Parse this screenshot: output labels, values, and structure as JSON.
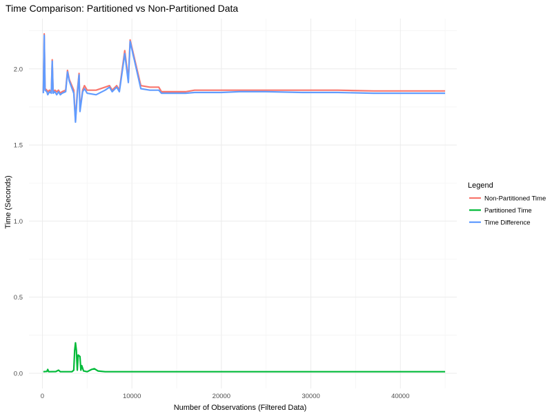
{
  "chart_data": {
    "type": "line",
    "title": "Time Comparison: Partitioned vs Non-Partitioned Data",
    "xlabel": "Number of Observations (Filtered Data)",
    "ylabel": "Time (Seconds)",
    "xlim": [
      -1500,
      46300
    ],
    "ylim": [
      -0.1,
      2.33
    ],
    "x_ticks": [
      0,
      10000,
      20000,
      30000,
      40000
    ],
    "x_tick_labels": [
      "0",
      "10000",
      "20000",
      "30000",
      "40000"
    ],
    "y_ticks": [
      0.0,
      0.5,
      1.0,
      1.5,
      2.0
    ],
    "y_tick_labels": [
      "0.0",
      "0.5",
      "1.0",
      "1.5",
      "2.0"
    ],
    "grid": true,
    "legend": {
      "title": "Legend",
      "position": "right"
    },
    "series": [
      {
        "name": "Non-Partitioned Time",
        "color": "#F8766D",
        "x": [
          100,
          200,
          300,
          500,
          600,
          800,
          1000,
          1100,
          1200,
          1400,
          1600,
          1800,
          2000,
          2200,
          2600,
          2800,
          3000,
          3500,
          3700,
          3900,
          4100,
          4200,
          4500,
          4700,
          5000,
          6000,
          7000,
          7500,
          7800,
          8300,
          8600,
          9200,
          9600,
          9800,
          11000,
          12000,
          13000,
          13300,
          15000,
          16000,
          17000,
          18000,
          20000,
          22000,
          25000,
          29000,
          33000,
          37000,
          40000,
          45000
        ],
        "values": [
          1.85,
          2.23,
          1.87,
          1.86,
          1.85,
          1.86,
          1.85,
          2.06,
          1.85,
          1.86,
          1.85,
          1.86,
          1.84,
          1.85,
          1.86,
          1.99,
          1.93,
          1.86,
          1.66,
          1.85,
          1.97,
          1.73,
          1.86,
          1.89,
          1.86,
          1.86,
          1.88,
          1.89,
          1.86,
          1.89,
          1.86,
          2.12,
          1.93,
          2.19,
          1.89,
          1.88,
          1.88,
          1.85,
          1.85,
          1.85,
          1.86,
          1.86,
          1.86,
          1.86,
          1.86,
          1.86,
          1.86,
          1.855,
          1.855,
          1.855
        ]
      },
      {
        "name": "Partitioned Time",
        "color": "#00BA38",
        "x": [
          100,
          500,
          600,
          700,
          1500,
          1800,
          2000,
          3300,
          3500,
          3600,
          3700,
          3800,
          3900,
          4000,
          4200,
          4300,
          4400,
          4600,
          5000,
          5500,
          5800,
          6200,
          7000,
          10000,
          45000
        ],
        "values": [
          0.01,
          0.012,
          0.025,
          0.01,
          0.011,
          0.02,
          0.01,
          0.01,
          0.02,
          0.15,
          0.2,
          0.15,
          0.02,
          0.12,
          0.11,
          0.02,
          0.05,
          0.015,
          0.01,
          0.025,
          0.03,
          0.015,
          0.01,
          0.01,
          0.01
        ]
      },
      {
        "name": "Time Difference",
        "color": "#619CFF",
        "x": [
          100,
          200,
          300,
          500,
          600,
          800,
          1000,
          1100,
          1200,
          1400,
          1600,
          1800,
          2000,
          2200,
          2600,
          2800,
          3000,
          3500,
          3700,
          3900,
          4100,
          4200,
          4500,
          4700,
          5000,
          6000,
          7000,
          7500,
          7800,
          8300,
          8600,
          9200,
          9600,
          9800,
          11000,
          12000,
          13000,
          13300,
          15000,
          16000,
          17000,
          18000,
          20000,
          22000,
          25000,
          29000,
          33000,
          37000,
          40000,
          45000
        ],
        "values": [
          1.84,
          2.22,
          1.86,
          1.85,
          1.83,
          1.85,
          1.84,
          2.05,
          1.84,
          1.85,
          1.83,
          1.85,
          1.83,
          1.84,
          1.85,
          1.98,
          1.92,
          1.84,
          1.65,
          1.83,
          1.96,
          1.72,
          1.85,
          1.87,
          1.84,
          1.83,
          1.86,
          1.88,
          1.85,
          1.88,
          1.85,
          2.1,
          1.91,
          2.18,
          1.87,
          1.86,
          1.86,
          1.84,
          1.84,
          1.84,
          1.845,
          1.845,
          1.845,
          1.85,
          1.85,
          1.845,
          1.845,
          1.84,
          1.84,
          1.84
        ]
      }
    ]
  }
}
